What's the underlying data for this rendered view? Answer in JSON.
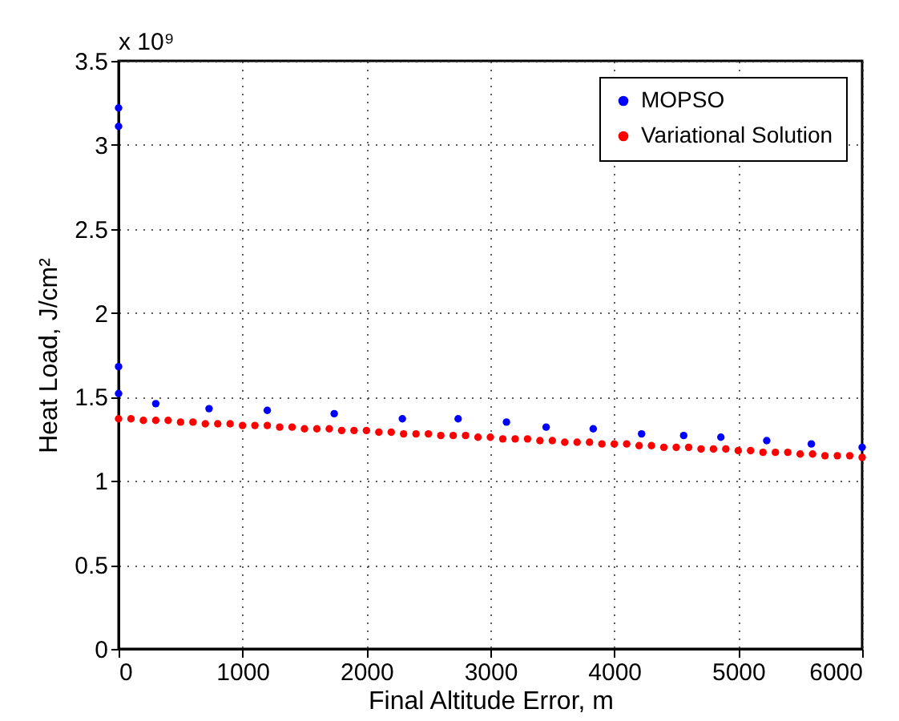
{
  "chart_data": {
    "type": "scatter",
    "xlabel": "Final Altitude Error, m",
    "ylabel": "Heat Load, J/cm²",
    "annotations": [
      "x 10⁹"
    ],
    "xlim": [
      0,
      6000
    ],
    "xticks": [
      0,
      1000,
      2000,
      3000,
      4000,
      5000,
      6000
    ],
    "ylim": [
      0,
      3.5
    ],
    "yticks": [
      0,
      0.5,
      1,
      1.5,
      2,
      2.5,
      3,
      3.5
    ],
    "grid": true,
    "legend": "top right",
    "marker": "circle",
    "series": [
      {
        "name": "MOPSO",
        "color": "#0000ff",
        "x": [
          0,
          0,
          0,
          0,
          300,
          730,
          1200,
          1740,
          2290,
          2740,
          3130,
          3450,
          3830,
          4220,
          4560,
          4860,
          5230,
          5590,
          6000
        ],
        "values": [
          3.22,
          3.11,
          1.68,
          1.52,
          1.46,
          1.43,
          1.42,
          1.4,
          1.37,
          1.37,
          1.35,
          1.32,
          1.31,
          1.28,
          1.27,
          1.26,
          1.24,
          1.22,
          1.2
        ]
      },
      {
        "name": "Variational Solution",
        "color": "#ff0000",
        "x": [
          0,
          100,
          200,
          300,
          400,
          500,
          600,
          700,
          800,
          900,
          1000,
          1100,
          1200,
          1300,
          1400,
          1500,
          1600,
          1700,
          1800,
          1900,
          2000,
          2100,
          2200,
          2300,
          2400,
          2500,
          2600,
          2700,
          2800,
          2900,
          3000,
          3100,
          3200,
          3300,
          3400,
          3500,
          3600,
          3700,
          3800,
          3900,
          4000,
          4100,
          4200,
          4300,
          4400,
          4500,
          4600,
          4700,
          4800,
          4900,
          5000,
          5100,
          5200,
          5300,
          5400,
          5500,
          5600,
          5700,
          5800,
          5900,
          6000
        ],
        "values": [
          1.37,
          1.37,
          1.36,
          1.36,
          1.36,
          1.35,
          1.35,
          1.34,
          1.34,
          1.34,
          1.33,
          1.33,
          1.33,
          1.32,
          1.32,
          1.31,
          1.31,
          1.31,
          1.3,
          1.3,
          1.3,
          1.29,
          1.29,
          1.28,
          1.28,
          1.28,
          1.27,
          1.27,
          1.27,
          1.26,
          1.26,
          1.25,
          1.25,
          1.25,
          1.24,
          1.24,
          1.23,
          1.23,
          1.23,
          1.22,
          1.22,
          1.22,
          1.21,
          1.21,
          1.2,
          1.2,
          1.2,
          1.19,
          1.19,
          1.19,
          1.18,
          1.18,
          1.17,
          1.17,
          1.17,
          1.16,
          1.16,
          1.15,
          1.15,
          1.15,
          1.14
        ]
      }
    ]
  }
}
